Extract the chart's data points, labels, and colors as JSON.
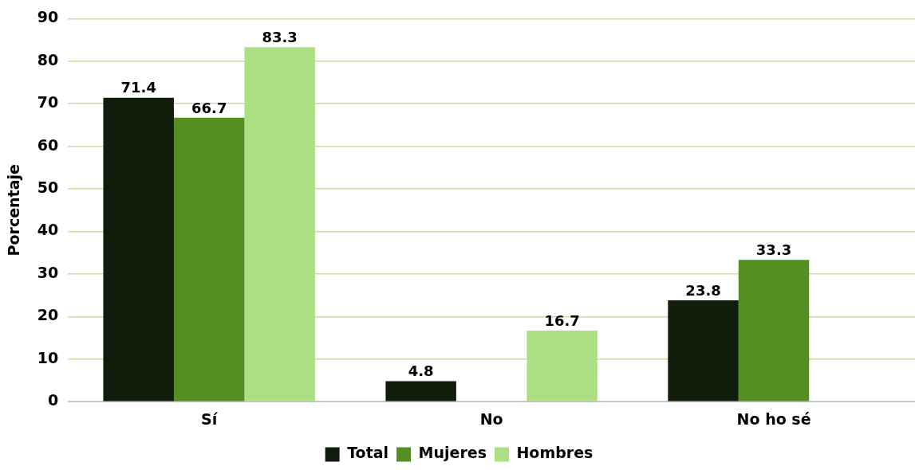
{
  "chart_data": {
    "type": "bar",
    "ylabel": "Porcentaje",
    "categories": [
      "Sí",
      "No",
      "No ho sé"
    ],
    "series": [
      {
        "name": "Total",
        "color": "#111d0b",
        "values": [
          71.4,
          4.8,
          23.8
        ]
      },
      {
        "name": "Mujeres",
        "color": "#558f23",
        "values": [
          66.7,
          null,
          33.3
        ]
      },
      {
        "name": "Hombres",
        "color": "#addf85",
        "values": [
          83.3,
          16.7,
          null
        ]
      }
    ],
    "ylim": [
      0,
      90
    ],
    "yticks": [
      0,
      10,
      20,
      30,
      40,
      50,
      60,
      70,
      80,
      90
    ],
    "grid": "y",
    "legend": "bottom",
    "data_labels": true
  }
}
